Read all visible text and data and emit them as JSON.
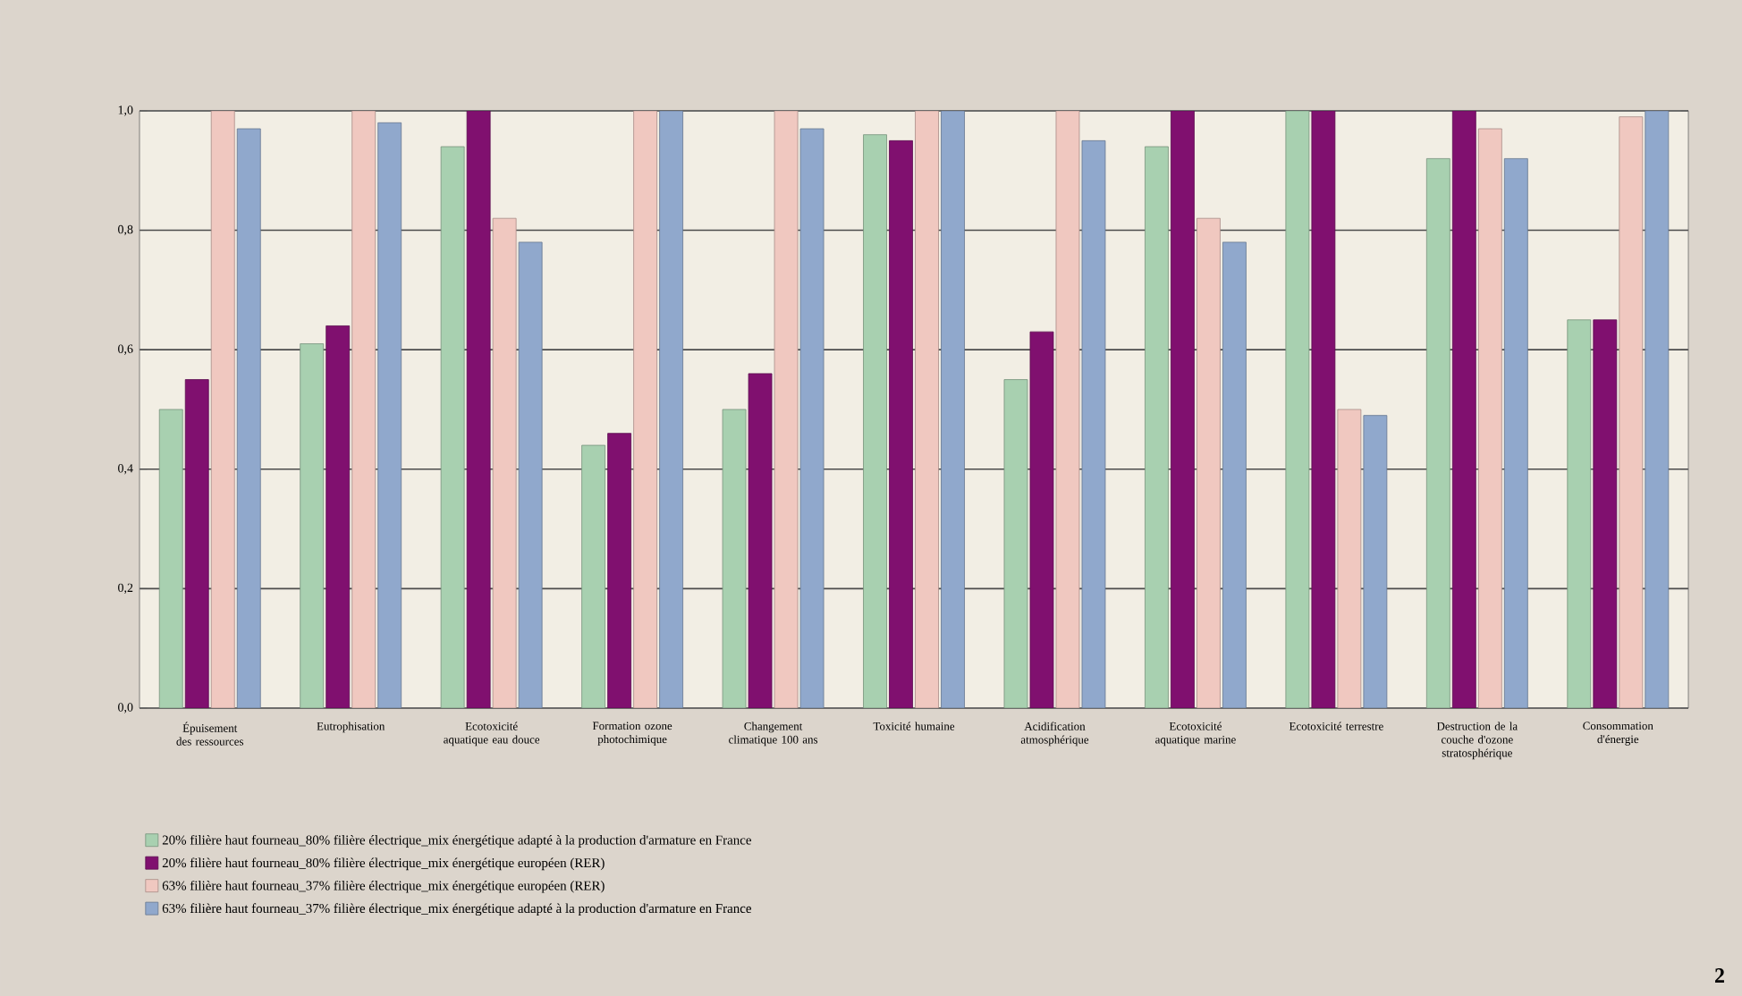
{
  "chart_data": {
    "type": "bar",
    "categories": [
      "Épuisement des ressources",
      "Eutrophisation",
      "Ecotoxicité aquatique eau douce",
      "Formation ozone photochimique",
      "Changement climatique 100 ans",
      "Toxicité humaine",
      "Acidification atmosphérique",
      "Ecotoxicité aquatique marine",
      "Ecotoxicité terrestre",
      "Destruction de la couche d'ozone stratosphérique",
      "Consommation d'énergie"
    ],
    "series": [
      {
        "name": "20% filière haut fourneau_80% filière électrique_mix énergétique adapté à la production d'armature en France",
        "color": "#a8d0b0",
        "values": [
          0.5,
          0.61,
          0.94,
          0.44,
          0.5,
          0.96,
          0.55,
          0.94,
          1.0,
          0.92,
          0.65
        ]
      },
      {
        "name": "20% filière haut fourneau_80% filière électrique_mix énergétique européen (RER)",
        "color": "#80106f",
        "values": [
          0.55,
          0.64,
          1.0,
          0.46,
          0.56,
          0.95,
          0.63,
          1.0,
          1.0,
          1.0,
          0.65
        ]
      },
      {
        "name": "63% filière haut fourneau_37% filière électrique_mix énergétique européen (RER)",
        "color": "#f0c8c0",
        "values": [
          1.0,
          1.0,
          0.82,
          1.0,
          1.0,
          1.0,
          1.0,
          0.82,
          0.5,
          0.97,
          0.99
        ]
      },
      {
        "name": "63% filière haut fourneau_37% filière électrique_mix énergétique adapté à la production d'armature en France",
        "color": "#90a8cc",
        "values": [
          0.97,
          0.98,
          0.78,
          1.0,
          0.97,
          1.0,
          0.95,
          0.78,
          0.49,
          0.92,
          1.0
        ]
      }
    ],
    "ylim": [
      0,
      1
    ],
    "yticks": [
      {
        "value": 0,
        "label": "0,0"
      },
      {
        "value": 0.2,
        "label": "0,2"
      },
      {
        "value": 0.4,
        "label": "0,4"
      },
      {
        "value": 0.6,
        "label": "0,6"
      },
      {
        "value": 0.8,
        "label": "0,8"
      },
      {
        "value": 1,
        "label": "1,0"
      }
    ],
    "grid": "y",
    "legend": "bottom",
    "annotations": [
      "2"
    ]
  }
}
